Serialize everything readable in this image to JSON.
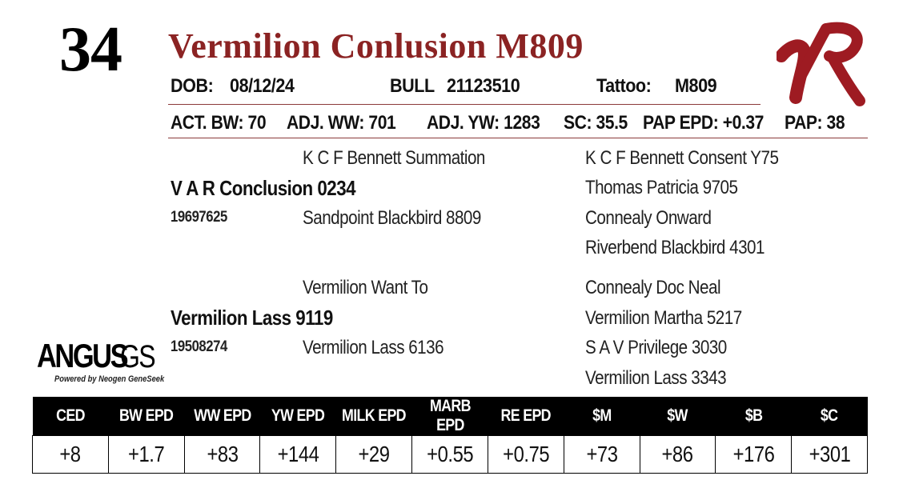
{
  "lot_number": "34",
  "animal_name": "Vermilion Conlusion M809",
  "dob_label": "DOB:",
  "dob": "08/12/24",
  "sex_label": "BULL",
  "registration": "21123510",
  "tattoo_label": "Tattoo:",
  "tattoo": "M809",
  "stats": {
    "act_bw": "ACT. BW: 70",
    "adj_ww": "ADJ. WW: 701",
    "adj_yw": "ADJ. YW: 1283",
    "sc": "SC: 35.5",
    "pap_epd": "PAP EPD: +0.37",
    "pap": "PAP: 38"
  },
  "pedigree": {
    "sire": "V A R Conclusion 0234",
    "sire_reg": "19697625",
    "sire_sire": "K C F Bennett Summation",
    "sire_dam": "Sandpoint Blackbird 8809",
    "ss_sire": "K C F Bennett Consent Y75",
    "ss_dam": "Thomas Patricia 9705",
    "sd_sire": "Connealy Onward",
    "sd_dam": "Riverbend Blackbird 4301",
    "dam": "Vermilion Lass 9119",
    "dam_reg": "19508274",
    "dam_sire": "Vermilion Want To",
    "dam_dam": "Vermilion Lass 6136",
    "ds_sire": "Connealy Doc Neal",
    "ds_dam": "Vermilion Martha 5217",
    "dd_sire": "S A V Privilege 3030",
    "dd_dam": "Vermilion Lass 3343"
  },
  "logo_vr_text": "VR",
  "angus_logo": {
    "word": "ANGUS",
    "suffix": "GS",
    "tagline": "Powered by Neogen GeneSeek"
  },
  "epd": {
    "headers": [
      "CED",
      "BW EPD",
      "WW EPD",
      "YW EPD",
      "MILK EPD",
      "MARB EPD",
      "RE EPD",
      "$M",
      "$W",
      "$B",
      "$C"
    ],
    "values": [
      "+8",
      "+1.7",
      "+83",
      "+144",
      "+29",
      "+0.55",
      "+0.75",
      "+73",
      "+86",
      "+176",
      "+301"
    ]
  },
  "colors": {
    "title": "#8b2323",
    "brand_red": "#9e1b22",
    "rule": "#8b3a3a"
  }
}
